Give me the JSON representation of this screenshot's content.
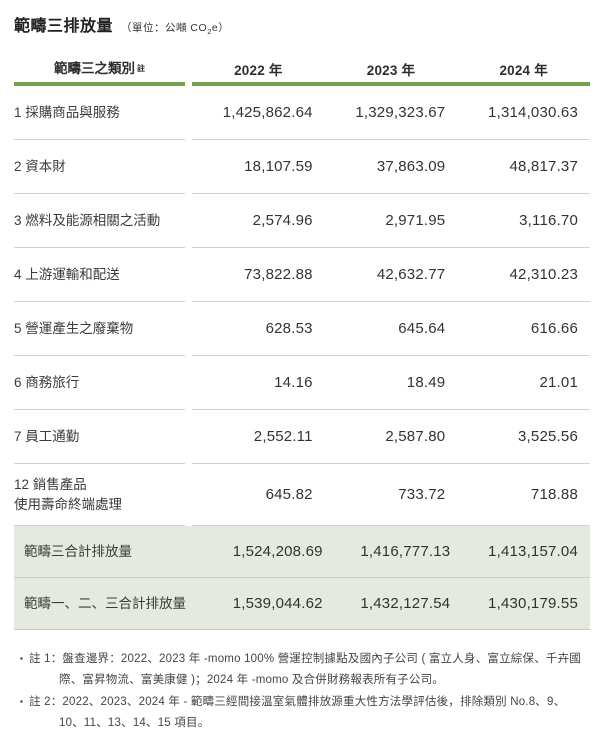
{
  "page": {
    "title": "範疇三排放量",
    "unit_prefix": "（單位：公噸 CO",
    "unit_sub": "2",
    "unit_suffix": "e）"
  },
  "table": {
    "header": {
      "category": "範疇三之類別",
      "note_mark": "註",
      "years": [
        "2022 年",
        "2023 年",
        "2024 年"
      ]
    },
    "rows": [
      {
        "label": "1 採購商品與服務",
        "values": [
          "1,425,862.64",
          "1,329,323.67",
          "1,314,030.63"
        ]
      },
      {
        "label": "2 資本財",
        "values": [
          "18,107.59",
          "37,863.09",
          "48,817.37"
        ]
      },
      {
        "label": "3 燃料及能源相關之活動",
        "values": [
          "2,574.96",
          "2,971.95",
          "3,116.70"
        ]
      },
      {
        "label": "4 上游運輸和配送",
        "values": [
          "73,822.88",
          "42,632.77",
          "42,310.23"
        ]
      },
      {
        "label": "5 營運產生之廢棄物",
        "values": [
          "628.53",
          "645.64",
          "616.66"
        ]
      },
      {
        "label": "6 商務旅行",
        "values": [
          "14.16",
          "18.49",
          "21.01"
        ]
      },
      {
        "label": "7 員工通勤",
        "values": [
          "2,552.11",
          "2,587.80",
          "3,525.56"
        ]
      },
      {
        "label": "12 銷售產品\n使用壽命終端處理",
        "values": [
          "645.82",
          "733.72",
          "718.88"
        ]
      }
    ],
    "summary_rows": [
      {
        "label": "範疇三合計排放量",
        "values": [
          "1,524,208.69",
          "1,416,777.13",
          "1,413,157.04"
        ]
      },
      {
        "label": "範疇一、二、三合計排放量",
        "values": [
          "1,539,044.62",
          "1,432,127.54",
          "1,430,179.55"
        ]
      }
    ]
  },
  "footnotes": [
    {
      "bullet": "▪",
      "text": "註 1：盤查邊界：2022、2023 年 -momo 100% 營運控制據點及國內子公司 ( 富立人身、富立綜保、千卉國際、富昇物流、富美康健 )；2024 年 -momo 及合併財務報表所有子公司。"
    },
    {
      "bullet": "▪",
      "text": "註 2：2022、2023、2024 年 - 範疇三經間接溫室氣體排放源重大性方法學評估後，排除類別 No.8、9、10、11、13、14、15 項目。"
    }
  ],
  "colors": {
    "accent_green": "#73a24e",
    "summary_bg": "#e4eadf"
  }
}
